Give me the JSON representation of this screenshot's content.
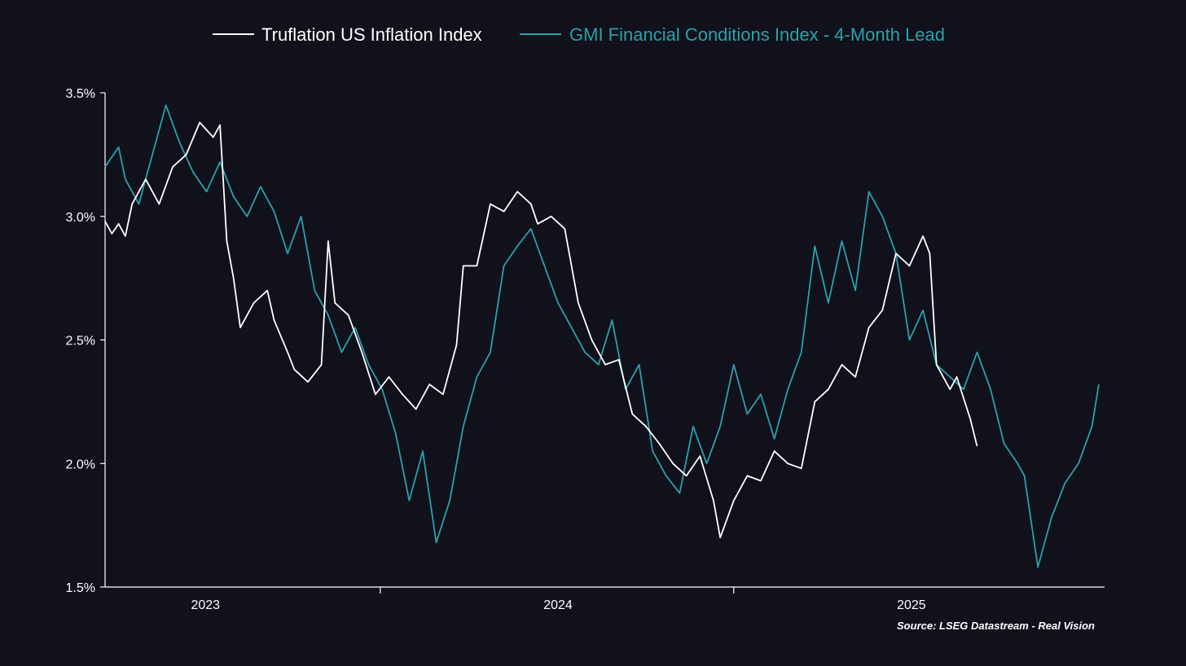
{
  "chart_data": {
    "type": "line",
    "title": "",
    "xlabel": "",
    "ylabel": "",
    "ylim": [
      1.5,
      3.5
    ],
    "xlim": [
      "2022-09-19",
      "2025-07-20"
    ],
    "grid": false,
    "legend_position": "top-center",
    "yticks": [
      {
        "value": 3.5,
        "label": "3.5%"
      },
      {
        "value": 3.0,
        "label": "3.0%"
      },
      {
        "value": 2.5,
        "label": "2.5%"
      },
      {
        "value": 2.0,
        "label": "2.0%"
      },
      {
        "value": 1.5,
        "label": "1.5%"
      }
    ],
    "xticks": [
      {
        "date": "2023-01-01",
        "label": "2023"
      },
      {
        "date": "2024-01-01",
        "label": "2024"
      },
      {
        "date": "2025-01-01",
        "label": "2025"
      }
    ],
    "xtick_marks": [
      "2023-07-01",
      "2024-07-01"
    ],
    "source": "Source: LSEG Datastream - Real Vision",
    "series": [
      {
        "name": "Truflation US Inflation Index",
        "color": "#ffffff",
        "points": [
          [
            "2022-09-19",
            2.98
          ],
          [
            "2022-09-26",
            2.93
          ],
          [
            "2022-10-03",
            2.97
          ],
          [
            "2022-10-10",
            2.92
          ],
          [
            "2022-10-17",
            3.05
          ],
          [
            "2022-10-31",
            3.15
          ],
          [
            "2022-11-14",
            3.05
          ],
          [
            "2022-11-28",
            3.2
          ],
          [
            "2022-12-12",
            3.25
          ],
          [
            "2022-12-26",
            3.38
          ],
          [
            "2023-01-09",
            3.32
          ],
          [
            "2023-01-16",
            3.37
          ],
          [
            "2023-01-23",
            2.9
          ],
          [
            "2023-01-30",
            2.75
          ],
          [
            "2023-02-06",
            2.55
          ],
          [
            "2023-02-20",
            2.65
          ],
          [
            "2023-03-06",
            2.7
          ],
          [
            "2023-03-13",
            2.58
          ],
          [
            "2023-03-27",
            2.45
          ],
          [
            "2023-04-03",
            2.38
          ],
          [
            "2023-04-17",
            2.33
          ],
          [
            "2023-05-01",
            2.4
          ],
          [
            "2023-05-08",
            2.9
          ],
          [
            "2023-05-15",
            2.65
          ],
          [
            "2023-05-29",
            2.6
          ],
          [
            "2023-06-12",
            2.45
          ],
          [
            "2023-06-26",
            2.28
          ],
          [
            "2023-07-10",
            2.35
          ],
          [
            "2023-07-24",
            2.28
          ],
          [
            "2023-08-07",
            2.22
          ],
          [
            "2023-08-21",
            2.32
          ],
          [
            "2023-09-04",
            2.28
          ],
          [
            "2023-09-18",
            2.48
          ],
          [
            "2023-09-25",
            2.8
          ],
          [
            "2023-10-09",
            2.8
          ],
          [
            "2023-10-23",
            3.05
          ],
          [
            "2023-11-06",
            3.02
          ],
          [
            "2023-11-20",
            3.1
          ],
          [
            "2023-12-04",
            3.05
          ],
          [
            "2023-12-11",
            2.97
          ],
          [
            "2023-12-25",
            3.0
          ],
          [
            "2024-01-08",
            2.95
          ],
          [
            "2024-01-22",
            2.65
          ],
          [
            "2024-02-05",
            2.5
          ],
          [
            "2024-02-19",
            2.4
          ],
          [
            "2024-03-04",
            2.42
          ],
          [
            "2024-03-18",
            2.2
          ],
          [
            "2024-04-01",
            2.15
          ],
          [
            "2024-04-15",
            2.08
          ],
          [
            "2024-04-29",
            2.0
          ],
          [
            "2024-05-13",
            1.95
          ],
          [
            "2024-05-27",
            2.03
          ],
          [
            "2024-06-10",
            1.85
          ],
          [
            "2024-06-17",
            1.7
          ],
          [
            "2024-07-01",
            1.85
          ],
          [
            "2024-07-15",
            1.95
          ],
          [
            "2024-07-29",
            1.93
          ],
          [
            "2024-08-12",
            2.05
          ],
          [
            "2024-08-26",
            2.0
          ],
          [
            "2024-09-09",
            1.98
          ],
          [
            "2024-09-23",
            2.25
          ],
          [
            "2024-10-07",
            2.3
          ],
          [
            "2024-10-21",
            2.4
          ],
          [
            "2024-11-04",
            2.35
          ],
          [
            "2024-11-18",
            2.55
          ],
          [
            "2024-12-02",
            2.62
          ],
          [
            "2024-12-16",
            2.85
          ],
          [
            "2024-12-30",
            2.8
          ],
          [
            "2025-01-13",
            2.92
          ],
          [
            "2025-01-20",
            2.85
          ],
          [
            "2025-01-27",
            2.4
          ],
          [
            "2025-02-10",
            2.3
          ],
          [
            "2025-02-17",
            2.35
          ],
          [
            "2025-03-03",
            2.18
          ],
          [
            "2025-03-10",
            2.07
          ]
        ]
      },
      {
        "name": "GMI Financial Conditions Index - 4-Month Lead",
        "color": "#2aa1a9",
        "points": [
          [
            "2022-09-19",
            3.2
          ],
          [
            "2022-10-03",
            3.28
          ],
          [
            "2022-10-10",
            3.15
          ],
          [
            "2022-10-24",
            3.05
          ],
          [
            "2022-11-07",
            3.25
          ],
          [
            "2022-11-21",
            3.45
          ],
          [
            "2022-12-05",
            3.3
          ],
          [
            "2022-12-19",
            3.18
          ],
          [
            "2023-01-02",
            3.1
          ],
          [
            "2023-01-16",
            3.22
          ],
          [
            "2023-01-30",
            3.08
          ],
          [
            "2023-02-13",
            3.0
          ],
          [
            "2023-02-27",
            3.12
          ],
          [
            "2023-03-13",
            3.02
          ],
          [
            "2023-03-27",
            2.85
          ],
          [
            "2023-04-10",
            3.0
          ],
          [
            "2023-04-24",
            2.7
          ],
          [
            "2023-05-08",
            2.6
          ],
          [
            "2023-05-22",
            2.45
          ],
          [
            "2023-06-05",
            2.55
          ],
          [
            "2023-06-19",
            2.4
          ],
          [
            "2023-07-03",
            2.3
          ],
          [
            "2023-07-17",
            2.12
          ],
          [
            "2023-07-31",
            1.85
          ],
          [
            "2023-08-14",
            2.05
          ],
          [
            "2023-08-28",
            1.68
          ],
          [
            "2023-09-11",
            1.85
          ],
          [
            "2023-09-25",
            2.15
          ],
          [
            "2023-10-09",
            2.35
          ],
          [
            "2023-10-23",
            2.45
          ],
          [
            "2023-11-06",
            2.8
          ],
          [
            "2023-11-20",
            2.88
          ],
          [
            "2023-12-04",
            2.95
          ],
          [
            "2023-12-18",
            2.8
          ],
          [
            "2024-01-01",
            2.65
          ],
          [
            "2024-01-15",
            2.55
          ],
          [
            "2024-01-29",
            2.45
          ],
          [
            "2024-02-12",
            2.4
          ],
          [
            "2024-02-26",
            2.58
          ],
          [
            "2024-03-11",
            2.3
          ],
          [
            "2024-03-25",
            2.4
          ],
          [
            "2024-04-08",
            2.05
          ],
          [
            "2024-04-22",
            1.95
          ],
          [
            "2024-05-06",
            1.88
          ],
          [
            "2024-05-20",
            2.15
          ],
          [
            "2024-06-03",
            2.0
          ],
          [
            "2024-06-17",
            2.15
          ],
          [
            "2024-07-01",
            2.4
          ],
          [
            "2024-07-15",
            2.2
          ],
          [
            "2024-07-29",
            2.28
          ],
          [
            "2024-08-12",
            2.1
          ],
          [
            "2024-08-26",
            2.3
          ],
          [
            "2024-09-09",
            2.45
          ],
          [
            "2024-09-23",
            2.88
          ],
          [
            "2024-10-07",
            2.65
          ],
          [
            "2024-10-21",
            2.9
          ],
          [
            "2024-11-04",
            2.7
          ],
          [
            "2024-11-18",
            3.1
          ],
          [
            "2024-12-02",
            3.0
          ],
          [
            "2024-12-16",
            2.85
          ],
          [
            "2024-12-30",
            2.5
          ],
          [
            "2025-01-13",
            2.62
          ],
          [
            "2025-01-27",
            2.4
          ],
          [
            "2025-02-10",
            2.35
          ],
          [
            "2025-02-24",
            2.3
          ],
          [
            "2025-03-10",
            2.45
          ],
          [
            "2025-03-24",
            2.3
          ],
          [
            "2025-04-07",
            2.08
          ],
          [
            "2025-04-21",
            2.0
          ],
          [
            "2025-04-28",
            1.95
          ],
          [
            "2025-05-12",
            1.58
          ],
          [
            "2025-05-26",
            1.78
          ],
          [
            "2025-06-09",
            1.92
          ],
          [
            "2025-06-23",
            2.0
          ],
          [
            "2025-07-07",
            2.15
          ],
          [
            "2025-07-14",
            2.32
          ]
        ]
      }
    ]
  }
}
